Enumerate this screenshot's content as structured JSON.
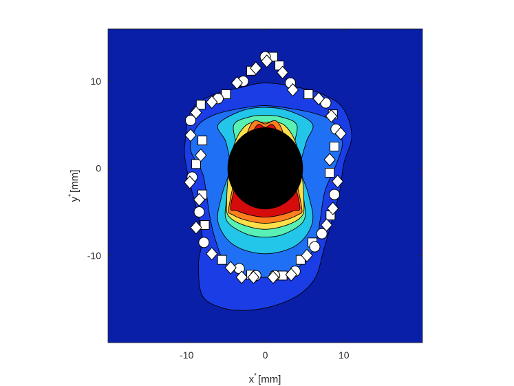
{
  "chart_data": {
    "type": "contour",
    "title": "",
    "xlabel": {
      "main": "x",
      "sup": "*",
      "unit": "[mm]"
    },
    "ylabel": {
      "main": "y",
      "sup": "*",
      "unit": "[mm]"
    },
    "xlim": [
      -20,
      20
    ],
    "ylim": [
      -20,
      16
    ],
    "xticks": [
      -10,
      0,
      10
    ],
    "yticks": [
      -10,
      0,
      10
    ],
    "xtick_labels": [
      "-10",
      "0",
      "10"
    ],
    "ytick_labels": [
      "-10",
      "0",
      "10"
    ],
    "colormap": "jet",
    "background_color": "#0a1fa8",
    "grid": false,
    "legend": "none",
    "levels": [
      {
        "color": "#1a3de6",
        "path": [
          [
            -10.2,
            3
          ],
          [
            -9.5,
            6.5
          ],
          [
            -7,
            8.3
          ],
          [
            -3,
            9.3
          ],
          [
            0,
            9.8
          ],
          [
            3.5,
            9.4
          ],
          [
            7,
            8.6
          ],
          [
            9.8,
            7
          ],
          [
            11,
            3.8
          ],
          [
            10,
            0.6
          ],
          [
            9.5,
            -2.5
          ],
          [
            8.6,
            -5.6
          ],
          [
            7.4,
            -9.5
          ],
          [
            6.4,
            -12.5
          ],
          [
            4.3,
            -14.5
          ],
          [
            1,
            -15.8
          ],
          [
            -2.5,
            -16.3
          ],
          [
            -5.5,
            -16
          ],
          [
            -8,
            -14.6
          ],
          [
            -8.5,
            -11
          ],
          [
            -8,
            -8
          ],
          [
            -8.7,
            -4.8
          ],
          [
            -9.5,
            -2
          ],
          [
            -10.2,
            1
          ]
        ]
      },
      {
        "color": "#2070f5",
        "path": [
          [
            -9.5,
            3
          ],
          [
            -8.5,
            5
          ],
          [
            -6.3,
            6.2
          ],
          [
            -3,
            6.9
          ],
          [
            0,
            7.2
          ],
          [
            3,
            6.9
          ],
          [
            6.3,
            6.3
          ],
          [
            8.6,
            5.3
          ],
          [
            9.8,
            3
          ],
          [
            9,
            0.4
          ],
          [
            7.6,
            -2.6
          ],
          [
            7,
            -5.8
          ],
          [
            6.5,
            -8.3
          ],
          [
            5.1,
            -10.7
          ],
          [
            2.4,
            -12.1
          ],
          [
            0,
            -12.5
          ],
          [
            -3,
            -12.2
          ],
          [
            -5.2,
            -10.7
          ],
          [
            -6.3,
            -8.3
          ],
          [
            -7,
            -5.8
          ],
          [
            -7.5,
            -2.8
          ],
          [
            -8,
            -0.5
          ],
          [
            -9.3,
            1.6
          ]
        ]
      },
      {
        "color": "#23c5e8",
        "path": [
          [
            -6,
            5
          ],
          [
            -3,
            6.6
          ],
          [
            0,
            7
          ],
          [
            3,
            6.6
          ],
          [
            6,
            5.1
          ],
          [
            5.2,
            3
          ],
          [
            4.5,
            0
          ],
          [
            5.5,
            -3
          ],
          [
            6,
            -6.2
          ],
          [
            4,
            -8.8
          ],
          [
            0,
            -9.8
          ],
          [
            -4,
            -8.8
          ],
          [
            -6,
            -6.2
          ],
          [
            -5.5,
            -3
          ],
          [
            -4.5,
            0
          ],
          [
            -5,
            3
          ]
        ]
      },
      {
        "color": "#58f0b4",
        "path": [
          [
            -4,
            5
          ],
          [
            -2,
            5.9
          ],
          [
            0,
            6.1
          ],
          [
            2,
            5.9
          ],
          [
            4,
            5
          ],
          [
            3.7,
            2.5
          ],
          [
            4.2,
            0
          ],
          [
            4.9,
            -3.5
          ],
          [
            4.9,
            -6
          ],
          [
            2.5,
            -7.5
          ],
          [
            0,
            -7.9
          ],
          [
            -2.5,
            -7.5
          ],
          [
            -4.9,
            -6
          ],
          [
            -4.9,
            -3.5
          ],
          [
            -4.2,
            0
          ],
          [
            -3.7,
            2.5
          ]
        ]
      },
      {
        "color": "#ffe04a",
        "path": [
          [
            -2.5,
            4.9
          ],
          [
            0,
            5.3
          ],
          [
            2.5,
            4.9
          ],
          [
            4.2,
            2
          ],
          [
            4.9,
            -3.5
          ],
          [
            4.3,
            -5.8
          ],
          [
            0,
            -7
          ],
          [
            -4.3,
            -5.8
          ],
          [
            -4.9,
            -3.5
          ],
          [
            -4.2,
            2
          ]
        ]
      },
      {
        "color": "#ff7e1e",
        "path": [
          [
            -2,
            4.7
          ],
          [
            0,
            5.1
          ],
          [
            2,
            4.7
          ],
          [
            4.5,
            -3.8
          ],
          [
            4,
            -5.4
          ],
          [
            0,
            -6.3
          ],
          [
            -4,
            -5.4
          ],
          [
            -4.5,
            -3.8
          ]
        ]
      },
      {
        "color": "#d60c0c",
        "path": [
          [
            -1.5,
            4.3
          ],
          [
            0,
            4.7
          ],
          [
            1.5,
            4.3
          ],
          [
            4.3,
            -3.8
          ],
          [
            3.5,
            -4.9
          ],
          [
            0,
            -5.6
          ],
          [
            -3.5,
            -4.9
          ],
          [
            -4.3,
            -3.8
          ]
        ]
      }
    ],
    "core": {
      "cx": 0,
      "cy": 0,
      "rx": 4.8,
      "ry": 4.7,
      "color": "#000000"
    },
    "markers": {
      "fill": "#ffffff",
      "stroke": "#000000",
      "circle": [
        [
          0,
          12.8
        ],
        [
          -2.8,
          10
        ],
        [
          3.2,
          9.8
        ],
        [
          -6,
          8
        ],
        [
          7.7,
          7.5
        ],
        [
          -9.5,
          5.5
        ],
        [
          9,
          4.5
        ],
        [
          -9.3,
          -1
        ],
        [
          8.8,
          -3
        ],
        [
          -8.4,
          -5
        ],
        [
          7.2,
          -7.5
        ],
        [
          -7.8,
          -8.5
        ],
        [
          6.3,
          -9
        ],
        [
          -3.3,
          -11.5
        ],
        [
          3.8,
          -11.8
        ],
        [
          1.2,
          -12.3
        ],
        [
          -1.2,
          -12.3
        ]
      ],
      "square": [
        [
          1,
          12.8
        ],
        [
          -1.8,
          11.2
        ],
        [
          1.8,
          11.8
        ],
        [
          -5,
          8.5
        ],
        [
          5.5,
          8.5
        ],
        [
          -8.2,
          7.3
        ],
        [
          8.6,
          6.2
        ],
        [
          -8,
          3.2
        ],
        [
          8.8,
          2.5
        ],
        [
          -8.8,
          0.5
        ],
        [
          8.2,
          -0.5
        ],
        [
          -8,
          -3
        ],
        [
          8.3,
          -5.4
        ],
        [
          -7.7,
          -6.5
        ],
        [
          6,
          -8.5
        ],
        [
          -5.5,
          -10.5
        ],
        [
          4.5,
          -10.5
        ],
        [
          -1.8,
          -12.2
        ],
        [
          2.2,
          -12.3
        ]
      ],
      "diamond": [
        [
          0.2,
          12.3
        ],
        [
          -1.2,
          11.5
        ],
        [
          2.2,
          11
        ],
        [
          -3.6,
          9.8
        ],
        [
          3.5,
          9
        ],
        [
          -6.8,
          7.6
        ],
        [
          6.8,
          8
        ],
        [
          -8.8,
          6.4
        ],
        [
          8.4,
          6
        ],
        [
          -9.5,
          3.8
        ],
        [
          9.6,
          4
        ],
        [
          -8.2,
          1.5
        ],
        [
          8.2,
          1
        ],
        [
          -9.6,
          -1.6
        ],
        [
          9.2,
          -1.5
        ],
        [
          -8.4,
          -3.6
        ],
        [
          8.6,
          -4.6
        ],
        [
          -8.8,
          -6.8
        ],
        [
          7.8,
          -6.5
        ],
        [
          -6.8,
          -9.8
        ],
        [
          5.3,
          -10
        ],
        [
          -4.4,
          -11.4
        ],
        [
          -3,
          -12.5
        ],
        [
          1,
          -12.5
        ],
        [
          3.3,
          -12.2
        ],
        [
          -1.5,
          -12.5
        ]
      ]
    }
  }
}
